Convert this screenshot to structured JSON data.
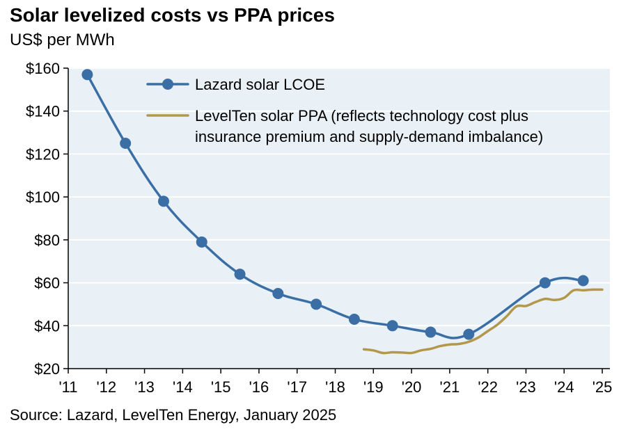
{
  "header": {
    "title": "Solar levelized costs vs PPA prices",
    "subtitle": "US$ per MWh"
  },
  "footer": {
    "source": "Source: Lazard, LevelTen Energy, January 2025"
  },
  "colors": {
    "plot_background": "#e9f1f6",
    "lcoe": "#3a6ea5",
    "ppa": "#b3974a"
  },
  "chart_data": {
    "type": "line",
    "title": "Solar levelized costs vs PPA prices",
    "ylabel": "US$ per MWh",
    "xlabel": "",
    "xlim": [
      2011,
      2025.2
    ],
    "ylim": [
      20,
      160
    ],
    "y_ticks": [
      20,
      40,
      60,
      80,
      100,
      120,
      140,
      160
    ],
    "y_tick_labels": [
      "$20",
      "$40",
      "$60",
      "$80",
      "$100",
      "$120",
      "$140",
      "$160"
    ],
    "x_ticks": [
      2011,
      2012,
      2013,
      2014,
      2015,
      2016,
      2017,
      2018,
      2019,
      2020,
      2021,
      2022,
      2023,
      2024,
      2025
    ],
    "x_tick_labels": [
      "'11",
      "'12",
      "'13",
      "'14",
      "'15",
      "'16",
      "'17",
      "'18",
      "'19",
      "'20",
      "'21",
      "'22",
      "'23",
      "'24",
      "'25"
    ],
    "grid": "horizontal",
    "legend": {
      "placement": "top-left",
      "entries": [
        {
          "series": "lcoe",
          "lines": [
            "Lazard solar LCOE"
          ]
        },
        {
          "series": "ppa",
          "lines": [
            "LevelTen solar PPA (reflects technology cost plus",
            "insurance premium and supply-demand imbalance)"
          ]
        }
      ]
    },
    "series": [
      {
        "id": "lcoe",
        "name": "Lazard solar LCOE",
        "markers": true,
        "x": [
          2011.5,
          2012.5,
          2013.5,
          2014.5,
          2015.5,
          2016.5,
          2017.5,
          2018.5,
          2019.5,
          2020.5,
          2021.5,
          2023.5,
          2024.5
        ],
        "values": [
          157,
          125,
          98,
          79,
          64,
          55,
          50,
          43,
          40,
          37,
          36,
          60,
          61
        ]
      },
      {
        "id": "ppa",
        "name": "LevelTen solar PPA (reflects technology cost plus insurance premium and supply-demand imbalance)",
        "markers": false,
        "x": [
          2018.75,
          2019.0,
          2019.25,
          2019.5,
          2019.75,
          2020.0,
          2020.25,
          2020.5,
          2020.75,
          2021.0,
          2021.25,
          2021.5,
          2021.75,
          2022.0,
          2022.25,
          2022.5,
          2022.75,
          2023.0,
          2023.25,
          2023.5,
          2023.75,
          2024.0,
          2024.25,
          2024.5,
          2024.75,
          2025.0
        ],
        "values": [
          29,
          28.5,
          27.3,
          27.6,
          27.5,
          27.3,
          28.5,
          29.2,
          30.5,
          31.2,
          31.5,
          32.5,
          34.5,
          37.5,
          40.5,
          44.5,
          49,
          49.2,
          51,
          52.5,
          52,
          53,
          56.5,
          56.5,
          56.8,
          56.8
        ]
      }
    ]
  }
}
